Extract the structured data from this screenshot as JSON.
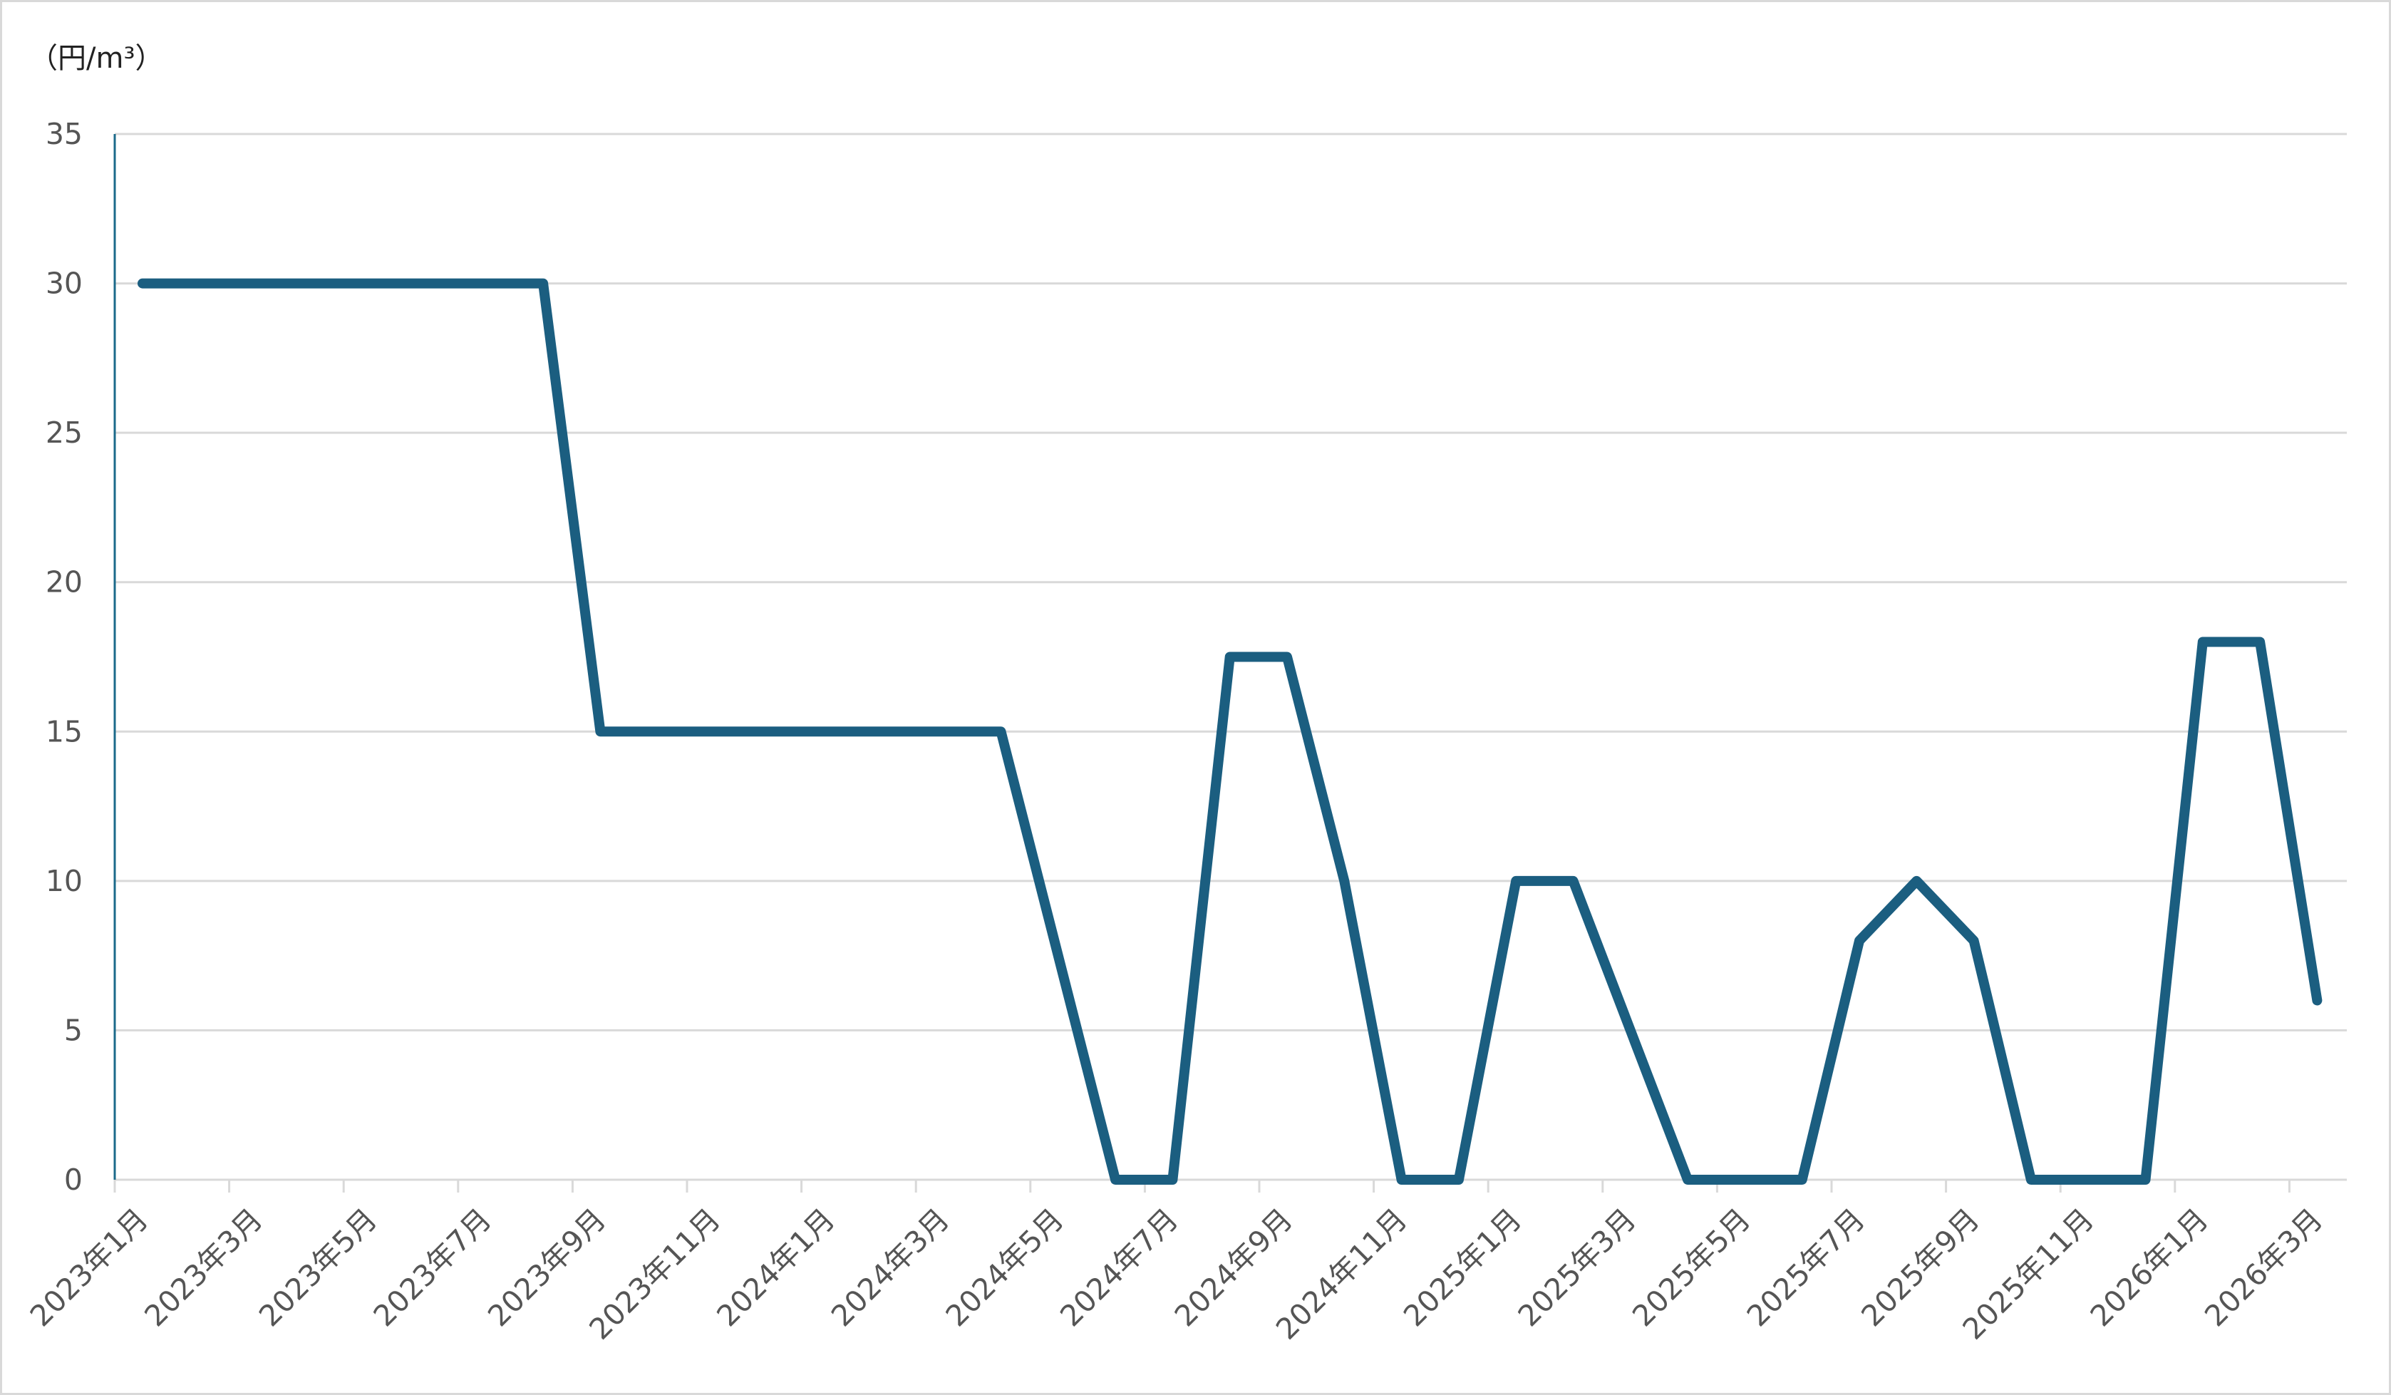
{
  "chart_data": {
    "type": "line",
    "title": "",
    "xlabel": "",
    "ylabel": "（円/m³）",
    "ylim": [
      0,
      35
    ],
    "y_ticks": [
      0,
      5,
      10,
      15,
      20,
      25,
      30,
      35
    ],
    "grid": true,
    "legend": "none",
    "x_tick_labels": [
      "2023年1月",
      "2023年3月",
      "2023年5月",
      "2023年7月",
      "2023年9月",
      "2023年11月",
      "2024年1月",
      "2024年3月",
      "2024年5月",
      "2024年7月",
      "2024年9月",
      "2024年11月",
      "2025年1月",
      "2025年3月",
      "2025年5月",
      "2025年7月",
      "2025年9月",
      "2025年11月",
      "2026年1月",
      "2026年3月"
    ],
    "series": [
      {
        "color": "#1b5e80",
        "points": [
          {
            "x": "2023年1月",
            "y": 30
          },
          {
            "x": "2023年8月",
            "y": 30
          },
          {
            "x": "2023年9月",
            "y": 15
          },
          {
            "x": "2024年4月",
            "y": 15
          },
          {
            "x": "2024年6月",
            "y": 0
          },
          {
            "x": "2024年7月",
            "y": 0
          },
          {
            "x": "2024年8月",
            "y": 17.5
          },
          {
            "x": "2024年9月",
            "y": 17.5
          },
          {
            "x": "2024年10月",
            "y": 10
          },
          {
            "x": "2024年11月",
            "y": 0
          },
          {
            "x": "2024年12月",
            "y": 0
          },
          {
            "x": "2025年1月",
            "y": 10
          },
          {
            "x": "2025年2月",
            "y": 10
          },
          {
            "x": "2025年4月",
            "y": 0
          },
          {
            "x": "2025年6月",
            "y": 0
          },
          {
            "x": "2025年7月",
            "y": 8
          },
          {
            "x": "2025年8月",
            "y": 10
          },
          {
            "x": "2025年9月",
            "y": 8
          },
          {
            "x": "2025年10月",
            "y": 0
          },
          {
            "x": "2025年12月",
            "y": 0
          },
          {
            "x": "2026年1月",
            "y": 18
          },
          {
            "x": "2026年2月",
            "y": 18
          },
          {
            "x": "2026年3月",
            "y": 6
          }
        ]
      }
    ]
  }
}
